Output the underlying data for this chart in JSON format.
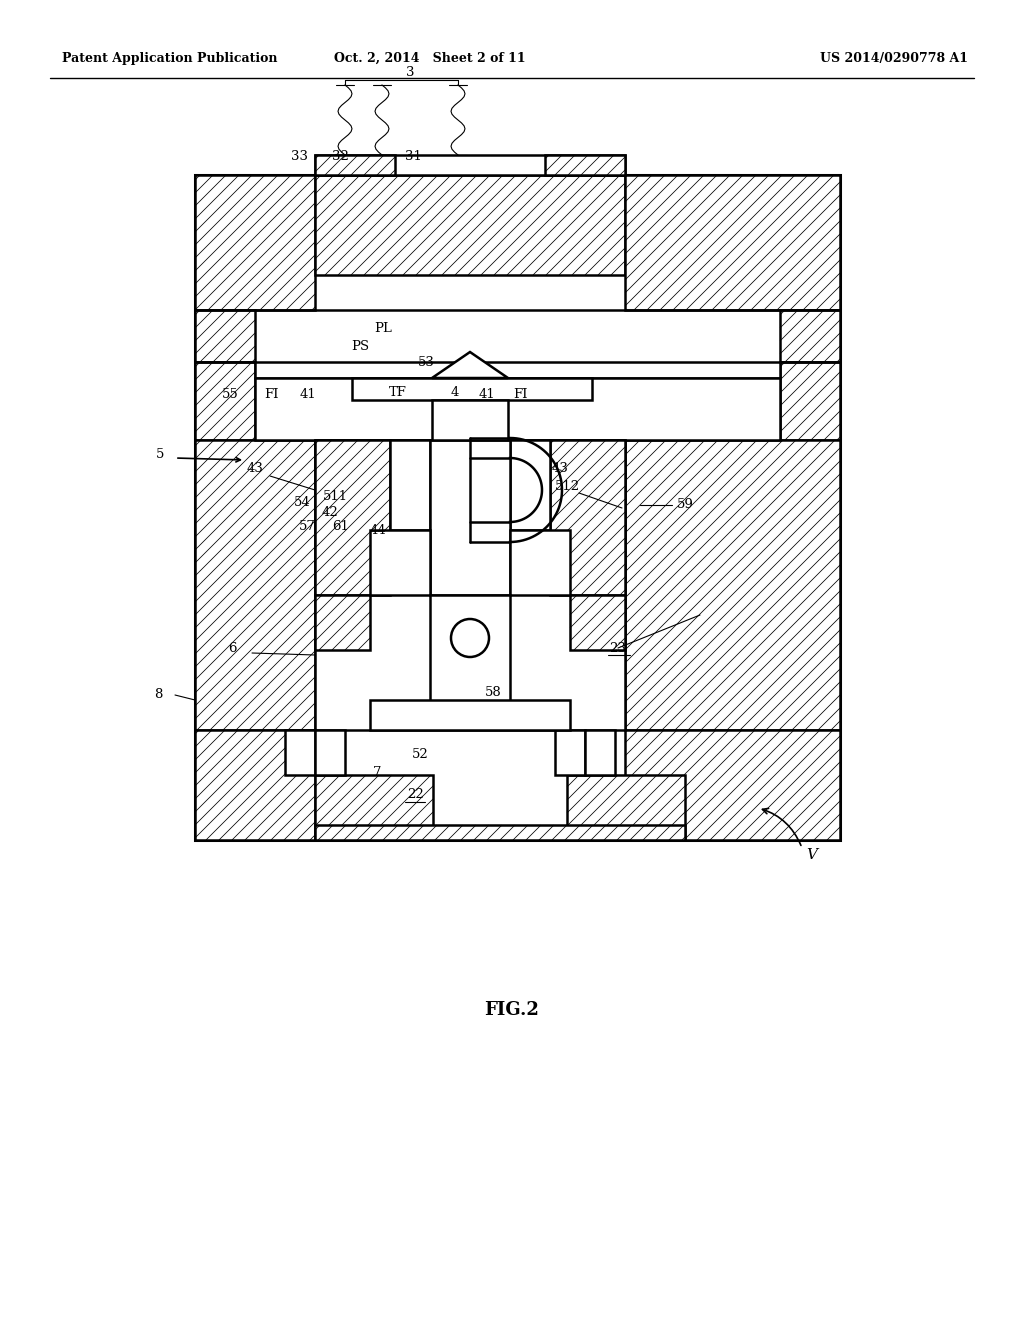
{
  "header_left": "Patent Application Publication",
  "header_mid": "Oct. 2, 2014   Sheet 2 of 11",
  "header_right": "US 2014/0290778 A1",
  "fig_label": "FIG.2",
  "bg_color": "#ffffff"
}
